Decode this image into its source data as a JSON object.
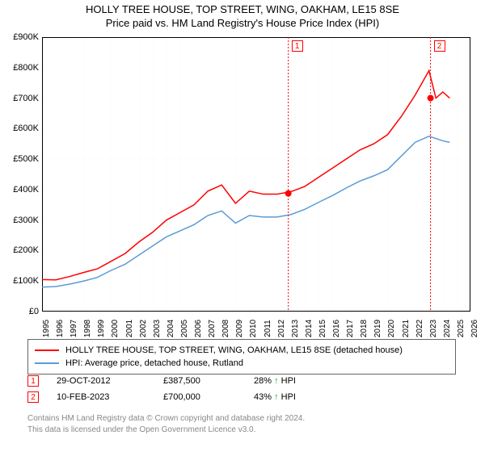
{
  "title_line1": "HOLLY TREE HOUSE, TOP STREET, WING, OAKHAM, LE15 8SE",
  "title_line2": "Price paid vs. HM Land Registry's House Price Index (HPI)",
  "chart": {
    "type": "line",
    "background_color": "#ffffff",
    "grid_color": "#e6e6e6",
    "axis_color": "#000000",
    "x": {
      "min": 1995,
      "max": 2026,
      "tick_step": 1,
      "label_fontsize": 10,
      "label_rotation": -90
    },
    "y": {
      "min": 0,
      "max": 900000,
      "tick_step": 100000,
      "prefix": "£",
      "suffix": "K",
      "label_fontsize": 11
    },
    "series": [
      {
        "label": "HOLLY TREE HOUSE, TOP STREET, WING, OAKHAM, LE15 8SE (detached house)",
        "color": "#ff0000",
        "line_width": 1.5,
        "points": [
          [
            1995,
            105000
          ],
          [
            1996,
            104000
          ],
          [
            1997,
            115000
          ],
          [
            1998,
            128000
          ],
          [
            1999,
            140000
          ],
          [
            2000,
            165000
          ],
          [
            2001,
            190000
          ],
          [
            2002,
            228000
          ],
          [
            2003,
            260000
          ],
          [
            2004,
            300000
          ],
          [
            2005,
            325000
          ],
          [
            2006,
            350000
          ],
          [
            2007,
            395000
          ],
          [
            2008,
            415000
          ],
          [
            2009,
            355000
          ],
          [
            2010,
            395000
          ],
          [
            2011,
            385000
          ],
          [
            2012,
            385000
          ],
          [
            2013,
            393000
          ],
          [
            2014,
            410000
          ],
          [
            2015,
            440000
          ],
          [
            2016,
            470000
          ],
          [
            2017,
            500000
          ],
          [
            2018,
            530000
          ],
          [
            2019,
            550000
          ],
          [
            2020,
            580000
          ],
          [
            2021,
            640000
          ],
          [
            2022,
            710000
          ],
          [
            2023,
            790000
          ],
          [
            2023.5,
            700000
          ],
          [
            2024,
            720000
          ],
          [
            2024.5,
            700000
          ]
        ]
      },
      {
        "label": "HPI: Average price, detached house, Rutland",
        "color": "#5b9bd5",
        "line_width": 1.5,
        "points": [
          [
            1995,
            80000
          ],
          [
            1996,
            82000
          ],
          [
            1997,
            90000
          ],
          [
            1998,
            100000
          ],
          [
            1999,
            112000
          ],
          [
            2000,
            135000
          ],
          [
            2001,
            155000
          ],
          [
            2002,
            185000
          ],
          [
            2003,
            215000
          ],
          [
            2004,
            245000
          ],
          [
            2005,
            265000
          ],
          [
            2006,
            285000
          ],
          [
            2007,
            315000
          ],
          [
            2008,
            330000
          ],
          [
            2009,
            290000
          ],
          [
            2010,
            315000
          ],
          [
            2011,
            310000
          ],
          [
            2012,
            310000
          ],
          [
            2013,
            318000
          ],
          [
            2014,
            335000
          ],
          [
            2015,
            358000
          ],
          [
            2016,
            380000
          ],
          [
            2017,
            405000
          ],
          [
            2018,
            428000
          ],
          [
            2019,
            445000
          ],
          [
            2020,
            465000
          ],
          [
            2021,
            510000
          ],
          [
            2022,
            555000
          ],
          [
            2023,
            575000
          ],
          [
            2024,
            560000
          ],
          [
            2024.5,
            555000
          ]
        ]
      }
    ],
    "sale_markers": [
      {
        "n": 1,
        "year": 2012.82,
        "price": 387500,
        "color": "#ff0000"
      },
      {
        "n": 2,
        "year": 2023.11,
        "price": 700000,
        "color": "#ff0000"
      }
    ]
  },
  "legend": {
    "items": [
      {
        "color": "#ff0000",
        "text": "HOLLY TREE HOUSE, TOP STREET, WING, OAKHAM, LE15 8SE (detached house)"
      },
      {
        "color": "#5b9bd5",
        "text": "HPI: Average price, detached house, Rutland"
      }
    ]
  },
  "sales_table": [
    {
      "n": 1,
      "date": "29-OCT-2012",
      "price": "£387,500",
      "comp": "28% ↑ HPI",
      "comp_color": "#2aa02a",
      "badge_color": "#ff0000"
    },
    {
      "n": 2,
      "date": "10-FEB-2023",
      "price": "£700,000",
      "comp": "43% ↑ HPI",
      "comp_color": "#2aa02a",
      "badge_color": "#ff0000"
    }
  ],
  "footnote1": "Contains HM Land Registry data © Crown copyright and database right 2024.",
  "footnote2": "This data is licensed under the Open Government Licence v3.0."
}
